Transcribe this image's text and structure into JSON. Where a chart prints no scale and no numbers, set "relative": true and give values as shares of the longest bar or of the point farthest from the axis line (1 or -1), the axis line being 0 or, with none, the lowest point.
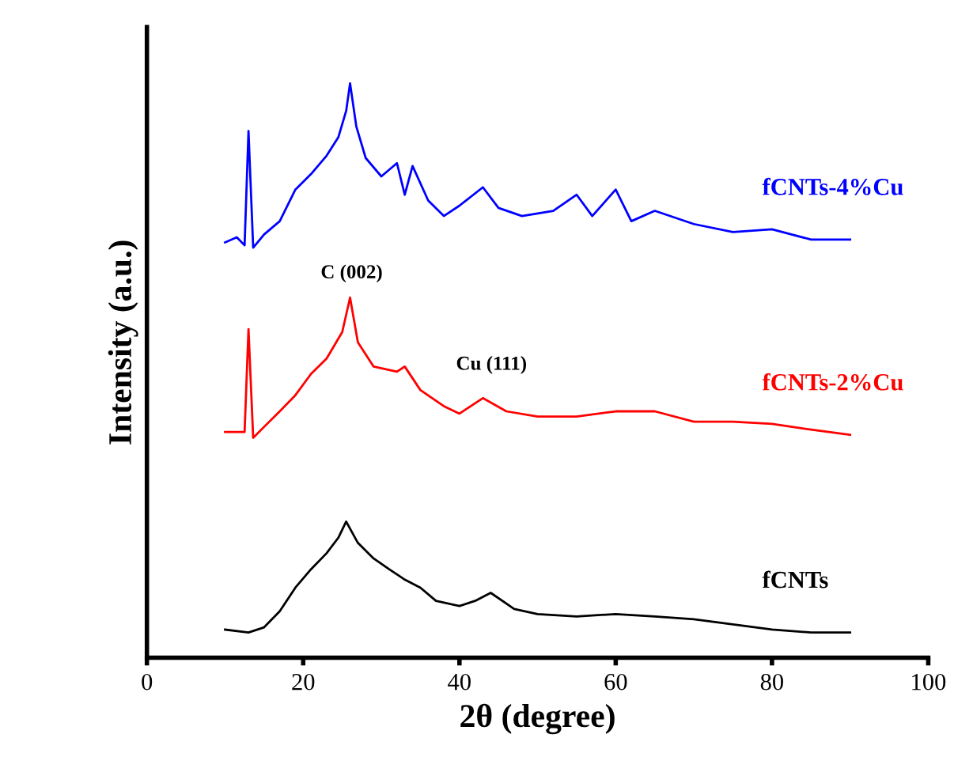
{
  "chart_data": {
    "type": "line",
    "relative": true,
    "xlabel": "2θ (degree)",
    "ylabel": "Intensity (a.u.)",
    "xlim": [
      0,
      100
    ],
    "xticks": [
      0,
      20,
      40,
      60,
      80,
      100
    ],
    "grid": false,
    "legend": false,
    "marker": "none",
    "line_style": "solid",
    "annotations": [
      "C (002)",
      "Cu (111)"
    ],
    "series": [
      {
        "name": "fCNTs-4%Cu",
        "color": "#0000ff",
        "x": [
          10,
          11.5,
          12.5,
          13,
          13.6,
          15,
          17,
          19,
          21,
          23,
          24.5,
          25.5,
          26,
          26.8,
          28,
          30,
          32,
          33,
          34,
          36,
          38,
          40,
          43,
          45,
          48,
          52,
          55,
          57,
          60,
          62,
          65,
          70,
          75,
          80,
          85,
          90
        ],
        "values": [
          0.723,
          0.732,
          0.718,
          0.917,
          0.714,
          0.737,
          0.76,
          0.815,
          0.842,
          0.874,
          0.906,
          0.952,
          1.0,
          0.925,
          0.87,
          0.838,
          0.861,
          0.806,
          0.856,
          0.796,
          0.769,
          0.787,
          0.819,
          0.783,
          0.769,
          0.778,
          0.806,
          0.769,
          0.815,
          0.76,
          0.778,
          0.755,
          0.741,
          0.746,
          0.728,
          0.728
        ]
      },
      {
        "name": "fCNTs-2%Cu",
        "color": "#ff0000",
        "x": [
          10,
          12.5,
          13,
          13.6,
          15,
          17,
          19,
          21,
          23,
          25,
          26,
          27,
          29,
          32,
          33,
          35,
          38,
          40,
          43,
          46,
          50,
          55,
          60,
          65,
          70,
          75,
          80,
          85,
          90
        ],
        "values": [
          0.393,
          0.393,
          0.572,
          0.383,
          0.402,
          0.429,
          0.457,
          0.494,
          0.521,
          0.567,
          0.627,
          0.549,
          0.507,
          0.498,
          0.507,
          0.466,
          0.438,
          0.425,
          0.452,
          0.429,
          0.42,
          0.42,
          0.429,
          0.429,
          0.411,
          0.411,
          0.407,
          0.397,
          0.388
        ]
      },
      {
        "name": "fCNTs",
        "color": "#000000",
        "x": [
          10,
          13,
          15,
          17,
          19,
          21,
          23,
          24.5,
          25.5,
          27,
          29,
          31,
          33,
          35,
          37,
          40,
          42,
          44,
          47,
          50,
          55,
          60,
          65,
          70,
          75,
          80,
          85,
          90
        ],
        "values": [
          0.049,
          0.044,
          0.053,
          0.081,
          0.122,
          0.154,
          0.182,
          0.209,
          0.237,
          0.2,
          0.173,
          0.154,
          0.136,
          0.122,
          0.099,
          0.09,
          0.099,
          0.113,
          0.085,
          0.076,
          0.072,
          0.076,
          0.072,
          0.067,
          0.058,
          0.049,
          0.044,
          0.044
        ]
      }
    ]
  }
}
